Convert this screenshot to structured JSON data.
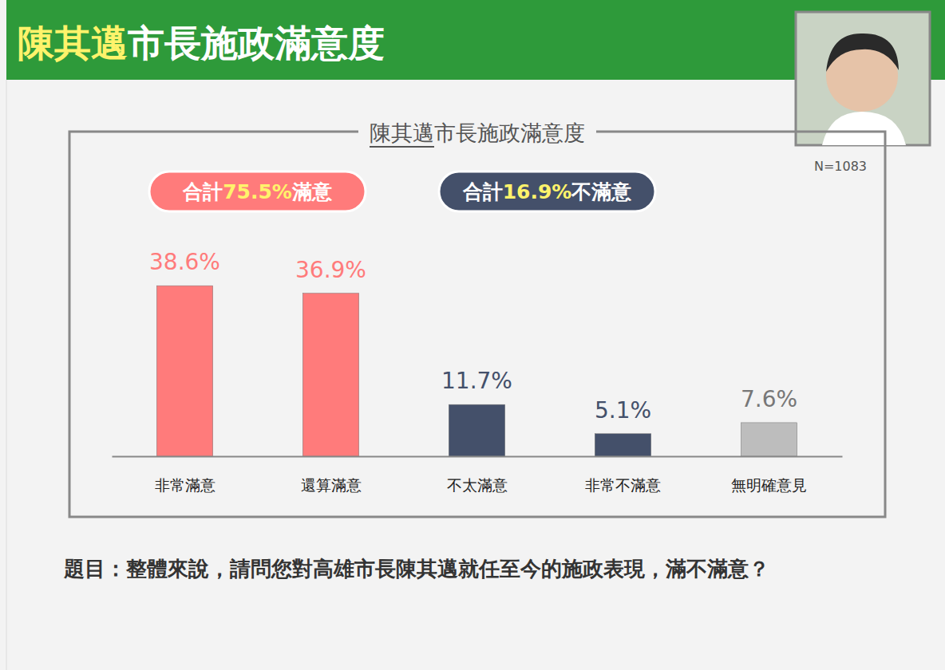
{
  "header": {
    "title_highlight": "陳其邁",
    "title": "市長施政滿意度"
  },
  "chart_data": {
    "type": "bar",
    "title": "陳其邁市長施政滿意度",
    "note": "N=1083",
    "annotations": [
      [
        "合計",
        "75.5%",
        "滿意"
      ],
      [
        "合計",
        "16.9%",
        "不滿意"
      ]
    ],
    "categories": [
      "非常滿意",
      "還算滿意",
      "不太滿意",
      "非常不滿意",
      "無明確意見"
    ],
    "values": [
      38.6,
      36.9,
      11.7,
      5.1,
      7.6
    ],
    "value_labels": [
      "38.6%",
      "36.9%",
      "11.7%",
      "5.1%",
      "7.6%"
    ],
    "colors": [
      "#ff7b7b",
      "#ff7b7b",
      "#44506a",
      "#44506a",
      "#bdbdbd"
    ],
    "ylim": [
      0,
      45
    ],
    "data_labels": true,
    "tick_labels": "x",
    "grid": false
  },
  "question": "題目：整體來說，請問您對高雄市長陳其邁就任至今的施政表現，滿不滿意？"
}
